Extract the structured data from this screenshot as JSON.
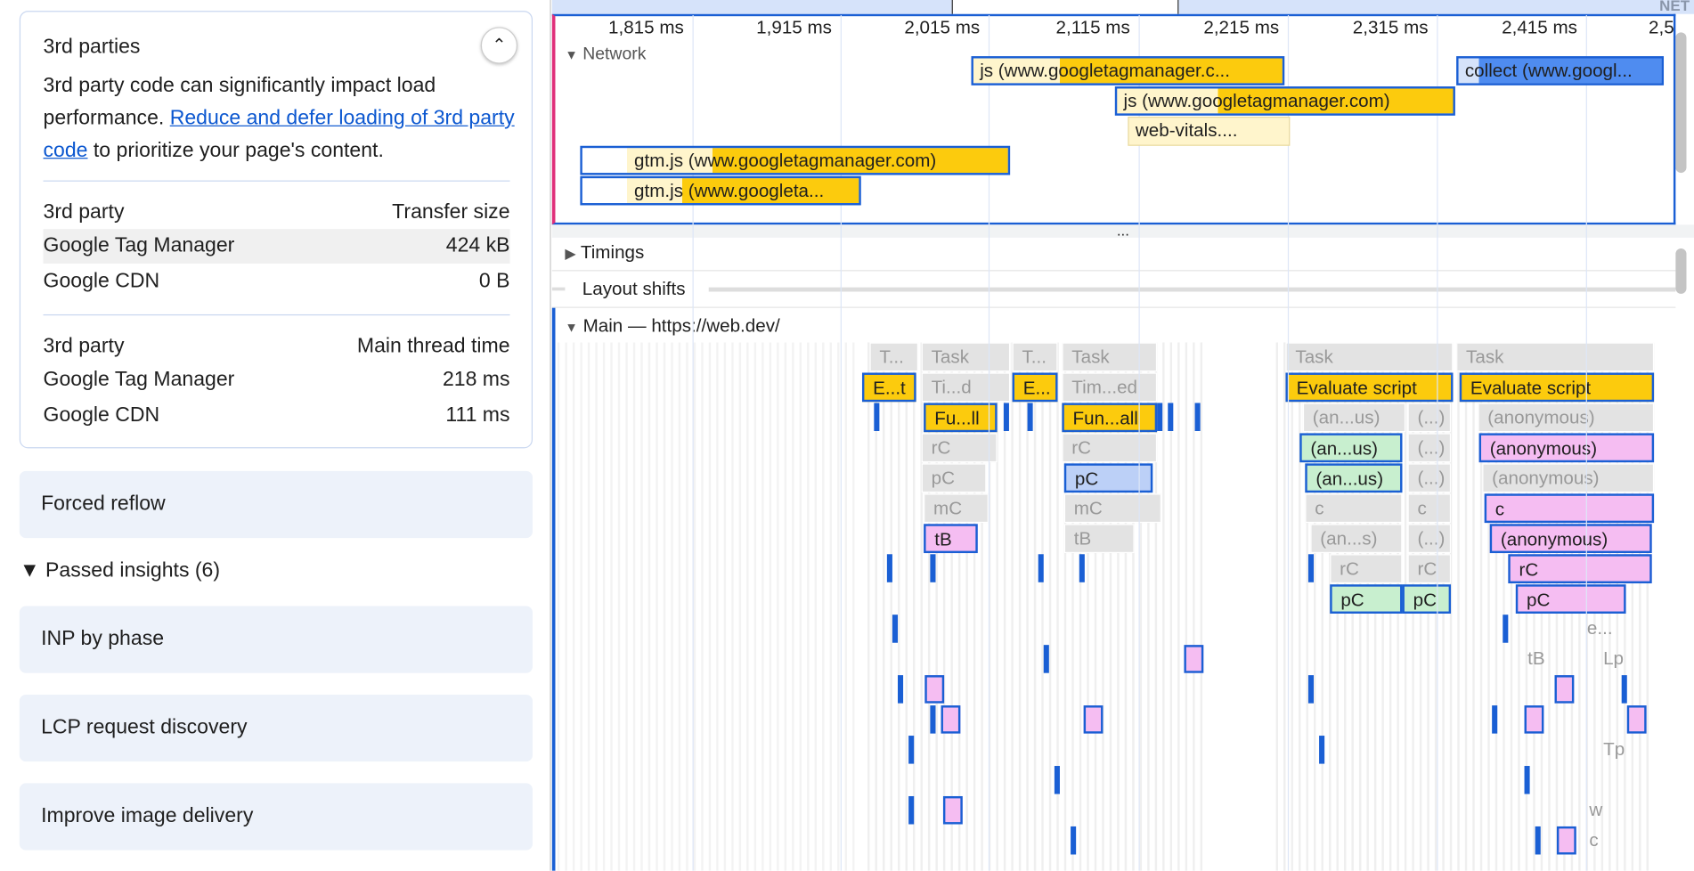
{
  "left_panel": {
    "card": {
      "title": "3rd parties",
      "collapse_icon": "chevron-up-icon",
      "desc_before": "3rd party code can significantly impact load performance. ",
      "desc_link": "Reduce and defer loading of 3rd party code",
      "desc_after": " to prioritize your page's content.",
      "transfer_table": {
        "headers": [
          "3rd party",
          "Transfer size"
        ],
        "rows": [
          [
            "Google Tag Manager",
            "424 kB"
          ],
          [
            "Google CDN",
            "0 B"
          ]
        ]
      },
      "time_table": {
        "headers": [
          "3rd party",
          "Main thread time"
        ],
        "rows": [
          [
            "Google Tag Manager",
            "218 ms"
          ],
          [
            "Google CDN",
            "111 ms"
          ]
        ]
      }
    },
    "forced_reflow": "Forced reflow",
    "passed_label": "Passed insights (6)",
    "passed_items": [
      "INP by phase",
      "LCP request discovery",
      "Improve image delivery"
    ]
  },
  "timeline": {
    "overview_label": "NET",
    "ticks": [
      "1,815 ms",
      "1,915 ms",
      "2,015 ms",
      "2,115 ms",
      "2,215 ms",
      "2,315 ms",
      "2,415 ms",
      "2,5"
    ],
    "network_label": "Network",
    "network_requests": [
      "js (www.googletagmanager.c...",
      "collect (www.googl...",
      "js (www.googletagmanager.com)",
      "web-vitals....",
      "gtm.js (www.googletagmanager.com)",
      "gtm.js (www.googleta..."
    ],
    "resize_handle": "...",
    "timings_label": "Timings",
    "layout_shifts_label": "Layout shifts",
    "main_label": "Main — https://web.dev/",
    "flame_labels": [
      "T...",
      "Task",
      "T...",
      "Task",
      "Task",
      "Task",
      "E...t",
      "Ti...d",
      "E...",
      "Tim...ed",
      "Evaluate script",
      "Evaluate script",
      "Fu...ll",
      "Fun...all",
      "(an...us)",
      "(...)",
      "(anonymous)",
      "rC",
      "rC",
      "(an...us)",
      "(...)",
      "(anonymous)",
      "pC",
      "pC",
      "(an...us)",
      "(...)",
      "(anonymous)",
      "mC",
      "mC",
      "c",
      "c",
      "c",
      "tB",
      "tB",
      "(an...s)",
      "(...)",
      "(anonymous)",
      "rC",
      "rC",
      "rC",
      "pC",
      "pC",
      "pC",
      "e...",
      "tB",
      "Lp",
      "Tp",
      "w",
      "c"
    ],
    "colors": {
      "yellow": "#fccb0d",
      "blue": "#1a5fd4",
      "pink": "#f5bdf2",
      "green": "#c8efcf",
      "lightblue": "#bcd0f7"
    }
  }
}
